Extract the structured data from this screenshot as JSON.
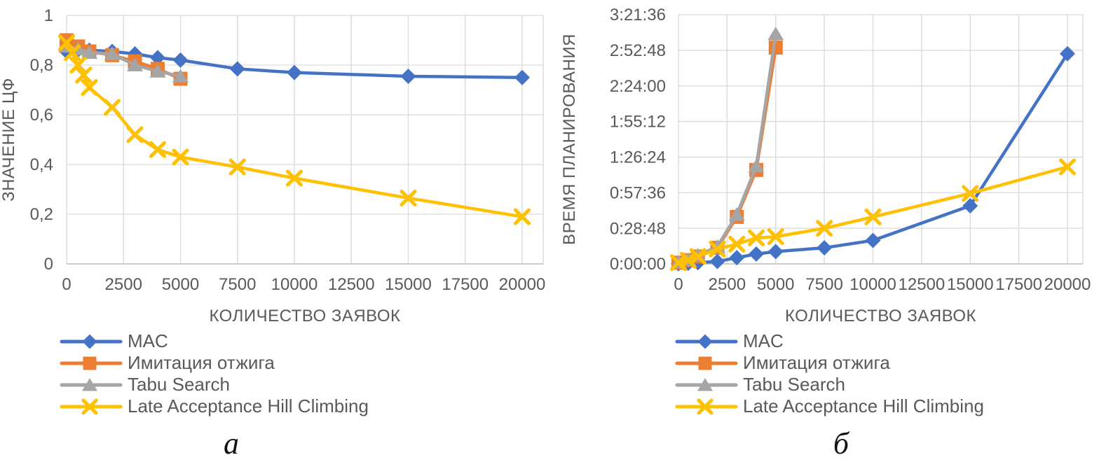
{
  "figure": {
    "background": "#ffffff",
    "text_color": "#595959",
    "grid_color": "#D9D9D9",
    "axis_line_color": "#BFBFBF",
    "captions": {
      "a": "а",
      "b": "б"
    }
  },
  "legend": {
    "items": [
      {
        "label": "MAC",
        "marker": "diamond",
        "color": "#4472C4"
      },
      {
        "label": "Имитация отжига",
        "marker": "square",
        "color": "#ED7D31"
      },
      {
        "label": "Tabu Search",
        "marker": "triangle",
        "color": "#A5A5A5"
      },
      {
        "label": "Late Acceptance Hill Climbing",
        "marker": "x",
        "color": "#FFC000"
      }
    ]
  },
  "chart_data": [
    {
      "id": "a",
      "type": "line",
      "title": "",
      "xlabel": "КОЛИЧЕСТВО ЗАЯВОК",
      "ylabel": "ЗНАЧЕНИЕ ЦФ",
      "xlim": [
        0,
        20000
      ],
      "ylim": [
        0,
        1
      ],
      "grid": true,
      "legend_position": "bottom-left",
      "xticks": {
        "values": [
          0,
          2500,
          5000,
          7500,
          10000,
          12500,
          15000,
          17500,
          20000
        ],
        "labels": [
          "0",
          "2500",
          "5000",
          "7500",
          "10000",
          "12500",
          "15000",
          "17500",
          "20000"
        ]
      },
      "yticks": {
        "values": [
          1,
          0.8,
          0.6,
          0.4,
          0.2,
          0
        ],
        "labels": [
          "1",
          "0,8",
          "0,6",
          "0,4",
          "0,2",
          "0"
        ]
      },
      "series": [
        {
          "name": "MAC",
          "marker": "diamond",
          "color": "#4472C4",
          "x": [
            0,
            500,
            1000,
            2000,
            3000,
            4000,
            5000,
            7500,
            10000,
            15000,
            20000
          ],
          "y": [
            0.855,
            0.86,
            0.86,
            0.855,
            0.845,
            0.83,
            0.82,
            0.785,
            0.77,
            0.755,
            0.75
          ]
        },
        {
          "name": "Имитация отжига",
          "marker": "square",
          "color": "#ED7D31",
          "x": [
            0,
            500,
            1000,
            2000,
            3000,
            4000,
            5000
          ],
          "y": [
            0.9,
            0.875,
            0.855,
            0.84,
            0.815,
            0.785,
            0.745
          ]
        },
        {
          "name": "Tabu Search",
          "marker": "triangle",
          "color": "#A5A5A5",
          "x": [
            0,
            500,
            1000,
            2000,
            3000,
            4000,
            5000
          ],
          "y": [
            0.875,
            0.865,
            0.85,
            0.845,
            0.8,
            0.775,
            0.755
          ]
        },
        {
          "name": "Late Acceptance Hill Climbing",
          "marker": "x",
          "color": "#FFC000",
          "x": [
            0,
            250,
            500,
            750,
            1000,
            2000,
            3000,
            4000,
            5000,
            7500,
            10000,
            15000,
            20000
          ],
          "y": [
            0.89,
            0.85,
            0.8,
            0.76,
            0.71,
            0.63,
            0.52,
            0.46,
            0.43,
            0.39,
            0.345,
            0.265,
            0.19
          ]
        }
      ]
    },
    {
      "id": "b",
      "type": "line",
      "title": "",
      "xlabel": "КОЛИЧЕСТВО ЗАЯВОК",
      "ylabel": "ВРЕМЯ ПЛАНИРОВАНИЯ",
      "xlim": [
        0,
        20000
      ],
      "ylim": [
        0,
        12096
      ],
      "y_unit_note": "seconds, shown as h:mm:ss",
      "grid": true,
      "legend_position": "bottom-left",
      "xticks": {
        "values": [
          0,
          2500,
          5000,
          7500,
          10000,
          12500,
          15000,
          17500,
          20000
        ],
        "labels": [
          "0",
          "2500",
          "5000",
          "7500",
          "10000",
          "12500",
          "15000",
          "17500",
          "20000"
        ]
      },
      "yticks": {
        "values": [
          12096,
          10368,
          8640,
          6912,
          5184,
          3456,
          1728,
          0
        ],
        "labels": [
          "3:21:36",
          "2:52:48",
          "2:24:00",
          "1:55:12",
          "1:26:24",
          "0:57:36",
          "0:28:48",
          "0:00:00"
        ]
      },
      "series": [
        {
          "name": "MAC",
          "marker": "diamond",
          "color": "#4472C4",
          "x": [
            0,
            500,
            1000,
            2000,
            3000,
            4000,
            5000,
            7500,
            10000,
            15000,
            20000
          ],
          "y": [
            10,
            30,
            60,
            120,
            300,
            480,
            600,
            780,
            1140,
            2820,
            10200
          ]
        },
        {
          "name": "Имитация отжига",
          "marker": "square",
          "color": "#ED7D31",
          "x": [
            0,
            500,
            1000,
            2000,
            3000,
            4000,
            5000
          ],
          "y": [
            60,
            180,
            360,
            780,
            2280,
            4560,
            10500
          ]
        },
        {
          "name": "Tabu Search",
          "marker": "triangle",
          "color": "#A5A5A5",
          "x": [
            0,
            500,
            1000,
            2000,
            3000,
            4000,
            5000
          ],
          "y": [
            90,
            210,
            420,
            840,
            2400,
            4740,
            11160
          ]
        },
        {
          "name": "Late Acceptance Hill Climbing",
          "marker": "x",
          "color": "#FFC000",
          "x": [
            0,
            500,
            1000,
            2000,
            3000,
            4000,
            5000,
            7500,
            10000,
            15000,
            20000
          ],
          "y": [
            60,
            180,
            360,
            720,
            960,
            1260,
            1320,
            1728,
            2280,
            3420,
            4710
          ]
        }
      ]
    }
  ]
}
